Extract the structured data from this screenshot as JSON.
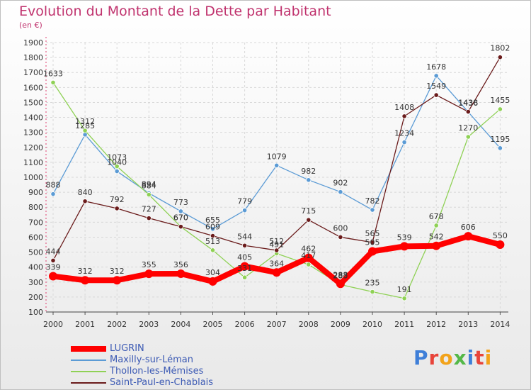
{
  "chart_data": {
    "type": "line",
    "title": "Evolution du Montant de la Dette par Habitant",
    "subtitle": "(en €)",
    "x": [
      "2000",
      "2001",
      "2002",
      "2003",
      "2004",
      "2005",
      "2006",
      "2007",
      "2008",
      "2009",
      "2010",
      "2011",
      "2012",
      "2013",
      "2014"
    ],
    "ylim": [
      100,
      1900
    ],
    "yticks": [
      "100",
      "200",
      "300",
      "400",
      "500",
      "600",
      "700",
      "800",
      "900",
      "1000",
      "1100",
      "1200",
      "1300",
      "1400",
      "1500",
      "1600",
      "1700",
      "1800",
      "1900"
    ],
    "grid": true,
    "legend_position": "bottom-left",
    "series": [
      {
        "name": "LUGRIN",
        "color": "#ff0000",
        "values": [
          339,
          312,
          312,
          355,
          356,
          304,
          405,
          364,
          462,
          288,
          505,
          539,
          542,
          606,
          550
        ]
      },
      {
        "name": "Maxilly-sur-Léman",
        "color": "#5b9bd5",
        "values": [
          888,
          1285,
          1040,
          894,
          773,
          655,
          779,
          1079,
          982,
          902,
          782,
          1234,
          1678,
          1436,
          1195
        ]
      },
      {
        "name": "Thollon-les-Mémises",
        "color": "#8fd155",
        "values": [
          1633,
          1312,
          1073,
          884,
          670,
          513,
          331,
          491,
          417,
          283,
          235,
          191,
          678,
          1270,
          1455
        ]
      },
      {
        "name": "Saint-Paul-en-Chablais",
        "color": "#6a1b1b",
        "values": [
          444,
          840,
          792,
          727,
          670,
          609,
          544,
          512,
          715,
          600,
          565,
          1408,
          1549,
          1438,
          1802
        ]
      }
    ]
  },
  "logo": {
    "letters": [
      {
        "ch": "P",
        "color": "#3f7fd8"
      },
      {
        "ch": "r",
        "color": "#e8443a"
      },
      {
        "ch": "o",
        "color": "#f2a31b"
      },
      {
        "ch": "x",
        "color": "#54b848"
      },
      {
        "ch": "i",
        "color": "#3f7fd8"
      },
      {
        "ch": "t",
        "color": "#e8443a"
      },
      {
        "ch": "i",
        "color": "#f2a31b"
      }
    ]
  }
}
